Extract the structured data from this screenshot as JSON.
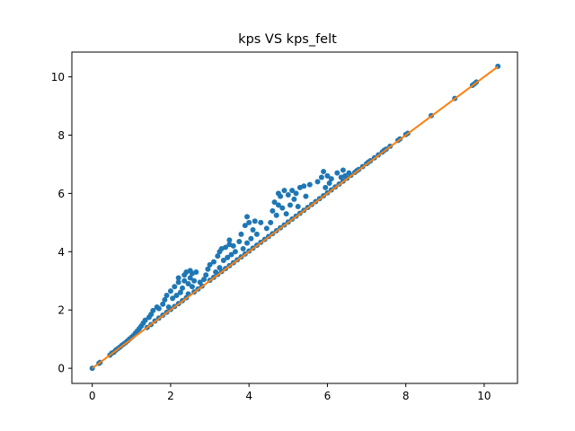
{
  "chart_data": {
    "type": "scatter",
    "title": "kps VS kps_felt",
    "xlabel": "",
    "ylabel": "",
    "xlim": [
      -0.52,
      10.85
    ],
    "ylim": [
      -0.52,
      10.85
    ],
    "xticks": [
      0,
      2,
      4,
      6,
      8,
      10
    ],
    "yticks": [
      0,
      2,
      4,
      6,
      8,
      10
    ],
    "xtick_labels": [
      "0",
      "2",
      "4",
      "6",
      "8",
      "10"
    ],
    "ytick_labels": [
      "0",
      "2",
      "4",
      "6",
      "8",
      "10"
    ],
    "grid": false,
    "series": [
      {
        "type": "scatter",
        "color": "#1f77b4",
        "points": [
          [
            0.0,
            0.0
          ],
          [
            0.17,
            0.17
          ],
          [
            0.2,
            0.2
          ],
          [
            0.45,
            0.45
          ],
          [
            0.5,
            0.52
          ],
          [
            0.55,
            0.55
          ],
          [
            0.6,
            0.62
          ],
          [
            0.65,
            0.67
          ],
          [
            0.7,
            0.72
          ],
          [
            0.75,
            0.78
          ],
          [
            0.8,
            0.83
          ],
          [
            0.85,
            0.88
          ],
          [
            0.9,
            0.94
          ],
          [
            0.95,
            1.0
          ],
          [
            1.0,
            1.06
          ],
          [
            1.05,
            1.12
          ],
          [
            1.1,
            1.2
          ],
          [
            1.15,
            1.28
          ],
          [
            1.2,
            1.36
          ],
          [
            1.25,
            1.45
          ],
          [
            1.3,
            1.55
          ],
          [
            1.35,
            1.65
          ],
          [
            1.4,
            1.4
          ],
          [
            1.45,
            1.75
          ],
          [
            1.5,
            1.85
          ],
          [
            1.5,
            1.5
          ],
          [
            1.55,
            1.98
          ],
          [
            1.6,
            1.62
          ],
          [
            1.65,
            2.1
          ],
          [
            1.7,
            1.72
          ],
          [
            1.7,
            2.05
          ],
          [
            1.8,
            2.2
          ],
          [
            1.8,
            1.82
          ],
          [
            1.85,
            2.35
          ],
          [
            1.9,
            1.92
          ],
          [
            1.9,
            2.5
          ],
          [
            1.95,
            2.1
          ],
          [
            2.0,
            2.02
          ],
          [
            2.0,
            2.65
          ],
          [
            2.05,
            2.4
          ],
          [
            2.1,
            2.12
          ],
          [
            2.1,
            2.8
          ],
          [
            2.15,
            2.5
          ],
          [
            2.2,
            2.22
          ],
          [
            2.2,
            2.95
          ],
          [
            2.2,
            3.1
          ],
          [
            2.25,
            2.6
          ],
          [
            2.3,
            2.32
          ],
          [
            2.3,
            2.75
          ],
          [
            2.35,
            3.0
          ],
          [
            2.35,
            3.2
          ],
          [
            2.4,
            2.42
          ],
          [
            2.4,
            3.3
          ],
          [
            2.45,
            2.9
          ],
          [
            2.45,
            2.55
          ],
          [
            2.5,
            3.35
          ],
          [
            2.5,
            3.1
          ],
          [
            2.55,
            2.8
          ],
          [
            2.55,
            3.25
          ],
          [
            2.6,
            2.62
          ],
          [
            2.6,
            3.0
          ],
          [
            2.65,
            3.3
          ],
          [
            2.7,
            2.72
          ],
          [
            2.75,
            2.95
          ],
          [
            2.8,
            2.82
          ],
          [
            2.85,
            3.05
          ],
          [
            2.9,
            3.2
          ],
          [
            2.95,
            3.4
          ],
          [
            3.0,
            3.02
          ],
          [
            3.0,
            3.55
          ],
          [
            3.1,
            3.12
          ],
          [
            3.1,
            3.65
          ],
          [
            3.15,
            3.3
          ],
          [
            3.2,
            3.22
          ],
          [
            3.2,
            3.85
          ],
          [
            3.25,
            4.0
          ],
          [
            3.25,
            3.45
          ],
          [
            3.3,
            4.1
          ],
          [
            3.3,
            3.32
          ],
          [
            3.35,
            3.7
          ],
          [
            3.4,
            3.42
          ],
          [
            3.4,
            4.15
          ],
          [
            3.45,
            3.8
          ],
          [
            3.5,
            3.52
          ],
          [
            3.5,
            4.25
          ],
          [
            3.5,
            4.4
          ],
          [
            3.55,
            3.9
          ],
          [
            3.6,
            3.62
          ],
          [
            3.6,
            4.2
          ],
          [
            3.65,
            4.0
          ],
          [
            3.7,
            3.72
          ],
          [
            3.75,
            4.35
          ],
          [
            3.8,
            3.82
          ],
          [
            3.8,
            4.6
          ],
          [
            3.85,
            4.1
          ],
          [
            3.9,
            3.92
          ],
          [
            3.9,
            4.9
          ],
          [
            3.95,
            5.2
          ],
          [
            3.95,
            4.3
          ],
          [
            4.0,
            4.02
          ],
          [
            4.0,
            5.0
          ],
          [
            4.05,
            4.45
          ],
          [
            4.1,
            4.12
          ],
          [
            4.1,
            4.75
          ],
          [
            4.15,
            5.05
          ],
          [
            4.2,
            4.22
          ],
          [
            4.2,
            4.6
          ],
          [
            4.3,
            4.32
          ],
          [
            4.3,
            5.0
          ],
          [
            4.4,
            4.42
          ],
          [
            4.45,
            4.8
          ],
          [
            4.5,
            4.52
          ],
          [
            4.55,
            5.0
          ],
          [
            4.6,
            4.62
          ],
          [
            4.6,
            5.4
          ],
          [
            4.65,
            5.7
          ],
          [
            4.7,
            4.72
          ],
          [
            4.7,
            5.25
          ],
          [
            4.75,
            5.6
          ],
          [
            4.75,
            6.0
          ],
          [
            4.8,
            4.82
          ],
          [
            4.8,
            5.9
          ],
          [
            4.85,
            5.5
          ],
          [
            4.9,
            4.92
          ],
          [
            4.9,
            6.1
          ],
          [
            4.95,
            5.3
          ],
          [
            5.0,
            5.02
          ],
          [
            5.0,
            5.95
          ],
          [
            5.05,
            5.6
          ],
          [
            5.1,
            5.12
          ],
          [
            5.1,
            6.1
          ],
          [
            5.15,
            5.8
          ],
          [
            5.2,
            5.22
          ],
          [
            5.2,
            6.0
          ],
          [
            5.25,
            5.55
          ],
          [
            5.3,
            5.32
          ],
          [
            5.3,
            6.2
          ],
          [
            5.4,
            5.42
          ],
          [
            5.4,
            6.25
          ],
          [
            5.45,
            5.9
          ],
          [
            5.5,
            5.52
          ],
          [
            5.55,
            6.3
          ],
          [
            5.6,
            5.62
          ],
          [
            5.7,
            5.72
          ],
          [
            5.75,
            6.4
          ],
          [
            5.8,
            5.82
          ],
          [
            5.85,
            6.55
          ],
          [
            5.9,
            5.92
          ],
          [
            5.9,
            6.75
          ],
          [
            5.95,
            6.2
          ],
          [
            6.0,
            6.02
          ],
          [
            6.0,
            6.6
          ],
          [
            6.05,
            6.35
          ],
          [
            6.1,
            6.12
          ],
          [
            6.1,
            6.5
          ],
          [
            6.2,
            6.22
          ],
          [
            6.25,
            6.7
          ],
          [
            6.3,
            6.32
          ],
          [
            6.35,
            6.55
          ],
          [
            6.4,
            6.42
          ],
          [
            6.4,
            6.8
          ],
          [
            6.45,
            6.6
          ],
          [
            6.5,
            6.52
          ],
          [
            6.55,
            6.7
          ],
          [
            6.6,
            6.62
          ],
          [
            6.7,
            6.72
          ],
          [
            6.75,
            6.78
          ],
          [
            6.8,
            6.82
          ],
          [
            6.9,
            6.92
          ],
          [
            7.0,
            7.02
          ],
          [
            7.05,
            7.08
          ],
          [
            7.1,
            7.12
          ],
          [
            7.2,
            7.22
          ],
          [
            7.3,
            7.32
          ],
          [
            7.4,
            7.42
          ],
          [
            7.45,
            7.48
          ],
          [
            7.5,
            7.52
          ],
          [
            7.6,
            7.62
          ],
          [
            7.8,
            7.82
          ],
          [
            7.85,
            7.87
          ],
          [
            8.0,
            8.02
          ],
          [
            8.05,
            8.06
          ],
          [
            8.65,
            8.67
          ],
          [
            9.25,
            9.26
          ],
          [
            9.7,
            9.71
          ],
          [
            9.75,
            9.76
          ],
          [
            9.8,
            9.82
          ],
          [
            10.35,
            10.36
          ]
        ]
      },
      {
        "type": "line",
        "color": "#ff7f0e",
        "points": [
          [
            0.0,
            0.0
          ],
          [
            10.35,
            10.35
          ]
        ]
      }
    ]
  }
}
